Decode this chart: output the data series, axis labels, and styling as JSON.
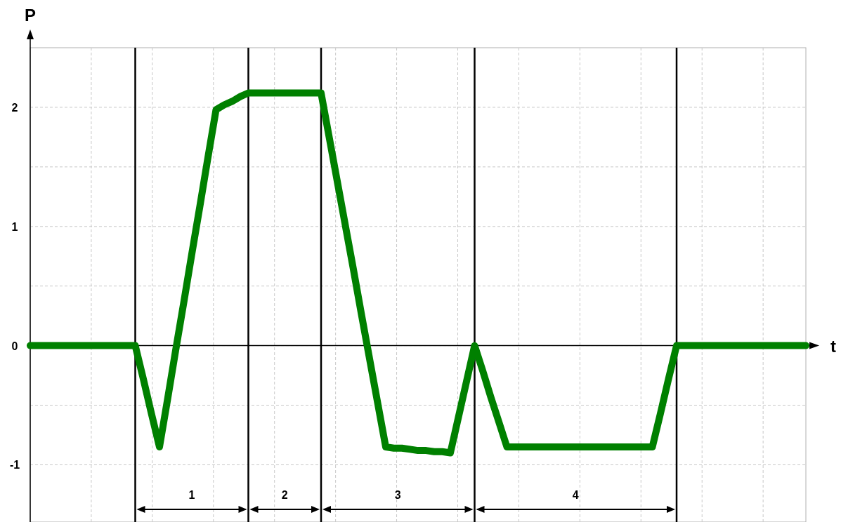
{
  "chart_data": {
    "type": "line",
    "xlabel": "t",
    "ylabel": "P",
    "categories": [
      null,
      null,
      null,
      null,
      null,
      null,
      null,
      null,
      null,
      null,
      null,
      null,
      null,
      null,
      null,
      null,
      null,
      null,
      null,
      null,
      null,
      null,
      null,
      null,
      null,
      null,
      null,
      null,
      null,
      null,
      null,
      null,
      null,
      null,
      null,
      null,
      null,
      null,
      null,
      null,
      null,
      null,
      null,
      null,
      null,
      null,
      null,
      null,
      null,
      null,
      null,
      null,
      null,
      null,
      null,
      null,
      null,
      null,
      null,
      null,
      null,
      null,
      null,
      null,
      null,
      null,
      null,
      null,
      null,
      null,
      null,
      null,
      null,
      null,
      null,
      null,
      null,
      null,
      null,
      null,
      null,
      null,
      null,
      null,
      null,
      null,
      null,
      null,
      null,
      null,
      null,
      null,
      null,
      null,
      null,
      null,
      null
    ],
    "series": [
      {
        "color": "#008000",
        "values": [
          0,
          0,
          0,
          0,
          0,
          0,
          0,
          0,
          0,
          0,
          0,
          0,
          0,
          0,
          -0.28,
          -0.57,
          -0.85,
          -0.45,
          -0.04,
          0.36,
          0.77,
          1.17,
          1.58,
          1.98,
          2.02,
          2.05,
          2.09,
          2.12,
          2.12,
          2.12,
          2.12,
          2.12,
          2.12,
          2.12,
          2.12,
          2.12,
          2.12,
          1.75,
          1.38,
          1.01,
          0.64,
          0.26,
          -0.11,
          -0.48,
          -0.85,
          -0.86,
          -0.86,
          -0.87,
          -0.88,
          -0.88,
          -0.89,
          -0.89,
          -0.9,
          -0.6,
          -0.3,
          0,
          -0.21,
          -0.43,
          -0.64,
          -0.85,
          -0.85,
          -0.85,
          -0.85,
          -0.85,
          -0.85,
          -0.85,
          -0.85,
          -0.85,
          -0.85,
          -0.85,
          -0.85,
          -0.85,
          -0.85,
          -0.85,
          -0.85,
          -0.85,
          -0.85,
          -0.85,
          -0.57,
          -0.28,
          0,
          0,
          0,
          0,
          0,
          0,
          0,
          0,
          0,
          0,
          0,
          0,
          0,
          0,
          0,
          0,
          0
        ]
      }
    ],
    "ylim": [
      -1.48,
      2.5
    ],
    "yticks": [
      -1,
      {
        "value": -0.5,
        "label": null
      },
      0,
      {
        "value": 0.5,
        "label": null
      },
      1,
      {
        "value": 1.5,
        "label": null
      },
      2
    ],
    "tick_labels": "y",
    "grid": true,
    "marker": "none",
    "line_style": "solid",
    "annotations": [
      "1",
      "2",
      "3",
      "4"
    ]
  }
}
